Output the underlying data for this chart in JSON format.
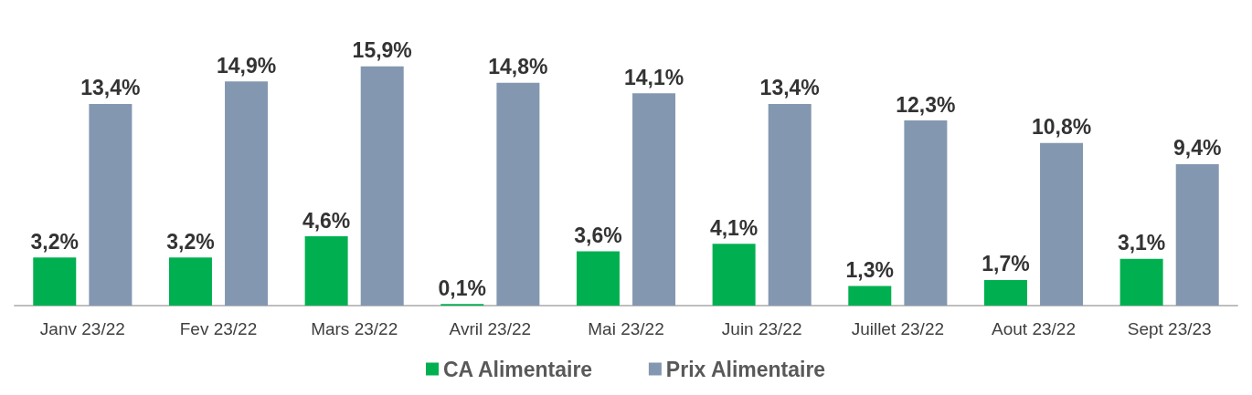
{
  "chart_data": {
    "type": "bar",
    "categories": [
      "Janv 23/22",
      "Fev 23/22",
      "Mars 23/22",
      "Avril 23/22",
      "Mai 23/22",
      "Juin 23/22",
      "Juillet 23/22",
      "Aout 23/22",
      "Sept 23/23"
    ],
    "series": [
      {
        "name": "CA Alimentaire",
        "color": "#00b050",
        "values": [
          3.2,
          3.2,
          4.6,
          0.1,
          3.6,
          4.1,
          1.3,
          1.7,
          3.1
        ],
        "value_labels": [
          "3,2%",
          "3,2%",
          "4,6%",
          "0,1%",
          "3,6%",
          "4,1%",
          "1,3%",
          "1,7%",
          "3,1%"
        ]
      },
      {
        "name": "Prix Alimentaire",
        "color": "#8497b0",
        "values": [
          13.4,
          14.9,
          15.9,
          14.8,
          14.1,
          13.4,
          12.3,
          10.8,
          9.4
        ],
        "value_labels": [
          "13,4%",
          "14,9%",
          "15,9%",
          "14,8%",
          "14,1%",
          "13,4%",
          "12,3%",
          "10,8%",
          "9,4%"
        ]
      }
    ],
    "legend": "bottom"
  }
}
